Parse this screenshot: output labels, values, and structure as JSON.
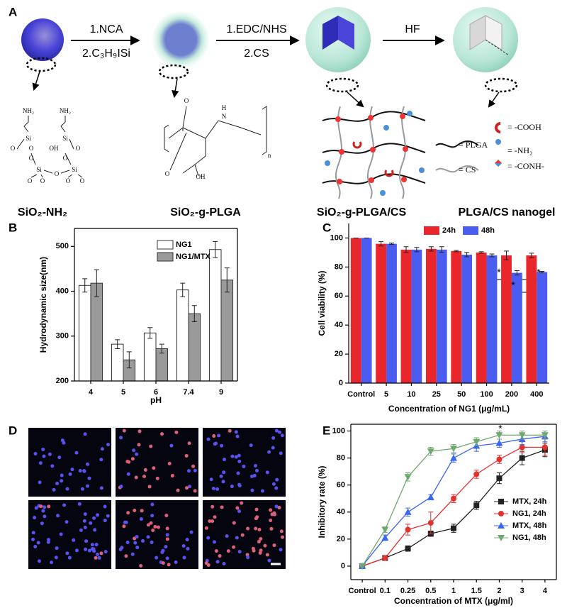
{
  "panel_labels": [
    "A",
    "B",
    "C",
    "D",
    "E"
  ],
  "scheme": {
    "step1": [
      "1.NCA",
      "2.C₃H₉ISi"
    ],
    "step2": [
      "1.EDC/NHS",
      "2.CS"
    ],
    "step3": "HF",
    "names": [
      "SiO₂-NH₂",
      "SiO₂-g-PLGA",
      "SiO₂-g-PLGA/CS",
      "PLGA/CS nanogel"
    ],
    "structure1": [
      "NH₂",
      "NH₂",
      "Si",
      "Si",
      "O",
      "O",
      "OH",
      "O",
      "O",
      "O",
      "Si",
      "O",
      "Si",
      "O",
      "O",
      "O",
      "O"
    ],
    "structure2": [
      "O",
      "N",
      "H",
      "n",
      "O",
      "OH"
    ],
    "legend": [
      "= PLGA",
      "= CS",
      "= -COOH",
      "= -NH₂",
      "= -CONH-"
    ]
  },
  "chart_data": [
    {
      "type": "bar",
      "x_label": "pH",
      "y_label": "Hydrodynamic size(nm)",
      "categories": [
        "4",
        "5",
        "6",
        "7.4",
        "9"
      ],
      "series": [
        {
          "name": "NG1",
          "color": "#ffffff",
          "values": [
            413,
            282,
            307,
            403,
            493
          ],
          "errors": [
            15,
            10,
            12,
            15,
            18
          ]
        },
        {
          "name": "NG1/MTX",
          "color": "#9a9a9a",
          "values": [
            418,
            247,
            272,
            350,
            425
          ],
          "errors": [
            30,
            18,
            10,
            18,
            27
          ]
        }
      ],
      "ylim": [
        200,
        540
      ],
      "yticks": [
        200,
        300,
        400,
        500
      ]
    },
    {
      "type": "bar",
      "x_label": "Concentration of NG1 (μg/mL)",
      "y_label": "Cell viability (%)",
      "categories": [
        "Control",
        "5",
        "10",
        "25",
        "50",
        "100",
        "200",
        "400"
      ],
      "series": [
        {
          "name": "24h",
          "color": "#e8262b",
          "values": [
            100,
            96,
            92,
            92.5,
            91,
            90,
            88,
            88
          ],
          "errors": [
            0,
            1.5,
            2,
            1.5,
            0.5,
            0.5,
            3,
            1.5
          ]
        },
        {
          "name": "48h",
          "color": "#4a5df0",
          "values": [
            100,
            96,
            92,
            92,
            88.5,
            88,
            76,
            76.5
          ],
          "errors": [
            0,
            0.5,
            1.5,
            2,
            1.5,
            1,
            1.5,
            0.5
          ]
        }
      ],
      "annotations": [
        "*",
        "*",
        "*"
      ],
      "ylim": [
        0,
        110
      ],
      "yticks": [
        0,
        20,
        40,
        60,
        80,
        100
      ]
    },
    {
      "type": "line",
      "x_label": "Concentration of MTX (μg/ml)",
      "y_label": "Inhibitory rate (%)",
      "categories": [
        "Control",
        "0.1",
        "0.25",
        "0.5",
        "1",
        "1.5",
        "2",
        "3",
        "4"
      ],
      "series": [
        {
          "name": "MTX, 24h",
          "color": "#222222",
          "marker": "square",
          "values": [
            0,
            6,
            13,
            24,
            28,
            45,
            65,
            80,
            86
          ],
          "errors": [
            0,
            0,
            2,
            2,
            3,
            3,
            4,
            5,
            5
          ]
        },
        {
          "name": "NG1, 24h",
          "color": "#e53030",
          "marker": "circle",
          "values": [
            0,
            6,
            27,
            32,
            50,
            68,
            79,
            88,
            88
          ],
          "errors": [
            0,
            0,
            4,
            8,
            3,
            3,
            3,
            4,
            6
          ]
        },
        {
          "name": "MTX, 48h",
          "color": "#3a66f5",
          "marker": "triangle",
          "values": [
            0,
            21,
            40,
            51,
            80,
            89,
            91,
            94,
            96
          ],
          "errors": [
            0,
            2,
            3,
            2,
            3,
            4,
            3,
            4,
            4
          ]
        },
        {
          "name": "NG1, 48h",
          "color": "#6fa86f",
          "marker": "triangle-down",
          "values": [
            0,
            27,
            66,
            85,
            87,
            92,
            97,
            97,
            97
          ],
          "errors": [
            0,
            2,
            3,
            3,
            3,
            3,
            3,
            3,
            3
          ]
        }
      ],
      "annotations": [
        "*"
      ],
      "ylim": [
        -10,
        105
      ],
      "yticks": [
        0,
        20,
        40,
        60,
        80,
        100
      ]
    }
  ]
}
